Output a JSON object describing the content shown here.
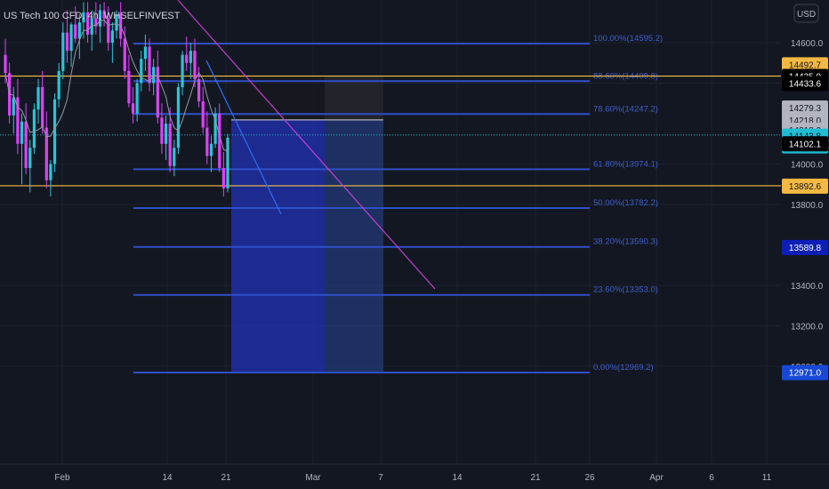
{
  "header": {
    "symbol_text": "US Tech 100 CFD, 4h, WHSELFINVEST",
    "currency": "USD"
  },
  "chart_data": {
    "type": "candlestick",
    "title": "US Tech 100 CFD, 4h, WHSELFINVEST",
    "ylim": [
      12900,
      14800
    ],
    "y_ticks": [
      {
        "value": 14600,
        "label": "14600.0"
      },
      {
        "value": 14400,
        "label": "14400.0"
      },
      {
        "value": 14000,
        "label": "14000.0"
      },
      {
        "value": 13800,
        "label": "13800.0"
      },
      {
        "value": 13400,
        "label": "13400.0"
      },
      {
        "value": 13200,
        "label": "13200.0"
      },
      {
        "value": 13000,
        "label": "13000.0"
      }
    ],
    "x_ticks": [
      "Feb",
      "14",
      "21",
      "Mar",
      "7",
      "14",
      "21",
      "26",
      "Apr",
      "6",
      "11"
    ],
    "fibonacci_levels": [
      {
        "ratio": "100.00%",
        "price": 14595.2,
        "label": "100.00%(14595.2)"
      },
      {
        "ratio": "88.60%",
        "price": 14409.8,
        "label": "88.60%(14409.8)"
      },
      {
        "ratio": "78.60%",
        "price": 14247.2,
        "label": "78.60%(14247.2)"
      },
      {
        "ratio": "61.80%",
        "price": 13974.1,
        "label": "61.80%(13974.1)"
      },
      {
        "ratio": "50.00%",
        "price": 13782.2,
        "label": "50.00%(13782.2)"
      },
      {
        "ratio": "38.20%",
        "price": 13590.3,
        "label": "38.20%(13590.3)"
      },
      {
        "ratio": "23.60%",
        "price": 13353.0,
        "label": "23.60%(13353.0)"
      },
      {
        "ratio": "0.00%",
        "price": 12969.2,
        "label": "0.00%(12969.2)"
      }
    ],
    "horizontal_lines": [
      {
        "price": 14435.0,
        "color": "#f5c242"
      },
      {
        "price": 13892.6,
        "color": "#f5c242"
      }
    ],
    "current_price_line": 14143.8,
    "price_labels": [
      {
        "price": 14492.7,
        "label": "14492.7",
        "bg": "#f5b942",
        "fg": "#131722"
      },
      {
        "price": 14435.0,
        "label": "14435.0",
        "bg": "#000000",
        "fg": "#ffffff"
      },
      {
        "price": 14400.0,
        "label": "14433.6",
        "bg": "#000000",
        "fg": "#ffffff"
      },
      {
        "price": 14279.3,
        "label": "14279.3",
        "bg": "#b2b5be",
        "fg": "#131722"
      },
      {
        "price": 14218.0,
        "label": "14218.0",
        "bg": "#b2b5be",
        "fg": "#131722"
      },
      {
        "price": 14170.0,
        "label": "14218.0",
        "bg": "#b2b5be",
        "fg": "#131722"
      },
      {
        "price": 14140.0,
        "label": "14143.8",
        "bg": "#1fbcd2",
        "fg": "#131722",
        "sub": "01:07:38"
      },
      {
        "price": 14102.1,
        "label": "14102.1",
        "bg": "#000000",
        "fg": "#ffffff"
      },
      {
        "price": 13892.6,
        "label": "13892.6",
        "bg": "#f5b942",
        "fg": "#131722"
      },
      {
        "price": 13589.8,
        "label": "13589.8",
        "bg": "#0c1fb8",
        "fg": "#ffffff"
      },
      {
        "price": 12971.0,
        "label": "12971.0",
        "bg": "#1848d8",
        "fg": "#ffffff"
      }
    ],
    "position": {
      "entry": 14218.0,
      "stop": 14433.6,
      "target": 12971.0
    },
    "candles": [
      [
        14540,
        14620,
        14400,
        14450
      ],
      [
        14450,
        14500,
        14200,
        14240
      ],
      [
        14240,
        14380,
        14150,
        14330
      ],
      [
        14330,
        14420,
        14050,
        14100
      ],
      [
        14100,
        14250,
        13900,
        14210
      ],
      [
        14210,
        14300,
        13950,
        13980
      ],
      [
        13980,
        14120,
        13860,
        14080
      ],
      [
        14080,
        14300,
        14050,
        14270
      ],
      [
        14270,
        14420,
        14200,
        14380
      ],
      [
        14380,
        14460,
        14150,
        14180
      ],
      [
        14180,
        14260,
        13880,
        13920
      ],
      [
        13920,
        14020,
        13840,
        14000
      ],
      [
        14000,
        14350,
        13960,
        14320
      ],
      [
        14320,
        14500,
        14280,
        14460
      ],
      [
        14460,
        14700,
        14420,
        14650
      ],
      [
        14650,
        14760,
        14500,
        14560
      ],
      [
        14560,
        14700,
        14480,
        14690
      ],
      [
        14690,
        14780,
        14600,
        14620
      ],
      [
        14620,
        14740,
        14520,
        14700
      ],
      [
        14700,
        14800,
        14620,
        14750
      ],
      [
        14750,
        14800,
        14600,
        14640
      ],
      [
        14640,
        14760,
        14560,
        14720
      ],
      [
        14720,
        14800,
        14640,
        14680
      ],
      [
        14680,
        14790,
        14600,
        14760
      ],
      [
        14760,
        14800,
        14680,
        14720
      ],
      [
        14720,
        14780,
        14560,
        14600
      ],
      [
        14600,
        14700,
        14500,
        14660
      ],
      [
        14660,
        14760,
        14620,
        14740
      ],
      [
        14740,
        14800,
        14580,
        14620
      ],
      [
        14620,
        14680,
        14420,
        14460
      ],
      [
        14460,
        14540,
        14280,
        14300
      ],
      [
        14300,
        14380,
        14200,
        14250
      ],
      [
        14250,
        14420,
        14210,
        14400
      ],
      [
        14400,
        14560,
        14360,
        14520
      ],
      [
        14520,
        14640,
        14460,
        14580
      ],
      [
        14580,
        14620,
        14360,
        14400
      ],
      [
        14400,
        14520,
        14340,
        14480
      ],
      [
        14480,
        14560,
        14200,
        14230
      ],
      [
        14230,
        14300,
        14050,
        14100
      ],
      [
        14100,
        14240,
        14020,
        14200
      ],
      [
        14200,
        14280,
        13960,
        13990
      ],
      [
        13990,
        14120,
        13940,
        14080
      ],
      [
        14080,
        14400,
        14050,
        14380
      ],
      [
        14380,
        14560,
        14340,
        14540
      ],
      [
        14540,
        14630,
        14460,
        14500
      ],
      [
        14500,
        14600,
        14420,
        14560
      ],
      [
        14560,
        14620,
        14380,
        14420
      ],
      [
        14420,
        14480,
        14280,
        14310
      ],
      [
        14310,
        14380,
        14150,
        14180
      ],
      [
        14180,
        14260,
        14000,
        14040
      ],
      [
        14040,
        14140,
        13960,
        14100
      ],
      [
        14100,
        14280,
        14080,
        14250
      ],
      [
        14250,
        14300,
        13960,
        13980
      ],
      [
        13980,
        14060,
        13840,
        13880
      ],
      [
        13880,
        14150,
        13860,
        14130
      ]
    ]
  }
}
